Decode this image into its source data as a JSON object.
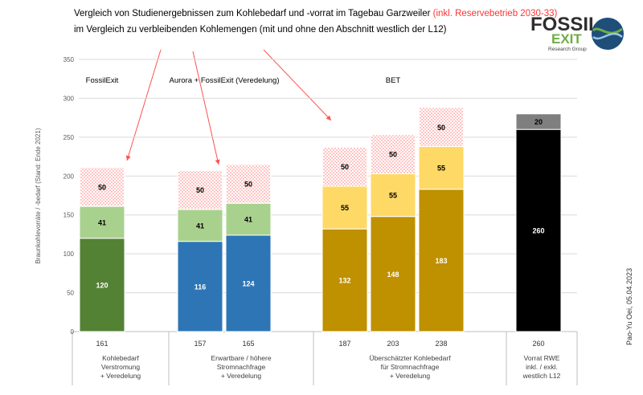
{
  "header": {
    "title_line1_main": "Vergleich von Studienergebnissen  zum Kohlebedarf  und -vorrat im Tagebau Garzweiler ",
    "title_line1_red": "(inkl. Reservebetrieb  2030-33)",
    "title_line2": "im Vergleich zu verbleibenden Kohlemengen (mit und ohne den Abschnitt westlich der L12)"
  },
  "logo": {
    "word1": "FOSSIL",
    "word2": "EXIT",
    "subtitle": "Research Group"
  },
  "credit": "Pao-Yu Oei, 05.04.2023",
  "colors": {
    "dark_green": "#548235",
    "light_green": "#a9d18e",
    "blue": "#2e75b6",
    "dark_gold": "#bf9000",
    "light_gold": "#ffd966",
    "black": "#000000",
    "grey": "#7f7f7f",
    "reserve_dots": "#ff6b6b",
    "arrow_red": "#ff5050"
  },
  "chart_data": {
    "type": "bar",
    "stacked": true,
    "ylabel": "Braunkohlevorräte / -bedarf (Stand: Ende 2021)",
    "ylim": [
      0,
      350
    ],
    "yticks": [
      0,
      50,
      100,
      150,
      200,
      250,
      300,
      350
    ],
    "grid": true,
    "study_labels": [
      {
        "label": "FossilExit",
        "bars": [
          0
        ]
      },
      {
        "label": "Aurora + FossilExit (Veredelung)",
        "bars": [
          1,
          2
        ]
      },
      {
        "label": "BET",
        "bars": [
          3,
          4,
          5
        ]
      }
    ],
    "bars": [
      {
        "total": "161",
        "segments": [
          {
            "value": 120,
            "label": "120",
            "color": "dark_green",
            "pattern": "solid",
            "text_color": "#ffffff"
          },
          {
            "value": 41,
            "label": "41",
            "color": "light_green",
            "pattern": "solid",
            "text_color": "#000000"
          },
          {
            "value": 50,
            "label": "50",
            "color": "reserve_dots",
            "pattern": "dots",
            "text_color": "#000000"
          }
        ]
      },
      {
        "total": "157",
        "segments": [
          {
            "value": 116,
            "label": "116",
            "color": "blue",
            "pattern": "solid",
            "text_color": "#ffffff"
          },
          {
            "value": 41,
            "label": "41",
            "color": "light_green",
            "pattern": "solid",
            "text_color": "#000000"
          },
          {
            "value": 50,
            "label": "50",
            "color": "reserve_dots",
            "pattern": "dots",
            "text_color": "#000000"
          }
        ]
      },
      {
        "total": "165",
        "segments": [
          {
            "value": 124,
            "label": "124",
            "color": "blue",
            "pattern": "solid",
            "text_color": "#ffffff"
          },
          {
            "value": 41,
            "label": "41",
            "color": "light_green",
            "pattern": "solid",
            "text_color": "#000000"
          },
          {
            "value": 50,
            "label": "50",
            "color": "reserve_dots",
            "pattern": "dots",
            "text_color": "#000000"
          }
        ]
      },
      {
        "total": "187",
        "segments": [
          {
            "value": 132,
            "label": "132",
            "color": "dark_gold",
            "pattern": "solid",
            "text_color": "#ffffff"
          },
          {
            "value": 55,
            "label": "55",
            "color": "light_gold",
            "pattern": "solid",
            "text_color": "#000000"
          },
          {
            "value": 50,
            "label": "50",
            "color": "reserve_dots",
            "pattern": "dots",
            "text_color": "#000000"
          }
        ]
      },
      {
        "total": "203",
        "segments": [
          {
            "value": 148,
            "label": "148",
            "color": "dark_gold",
            "pattern": "solid",
            "text_color": "#ffffff"
          },
          {
            "value": 55,
            "label": "55",
            "color": "light_gold",
            "pattern": "solid",
            "text_color": "#000000"
          },
          {
            "value": 50,
            "label": "50",
            "color": "reserve_dots",
            "pattern": "dots",
            "text_color": "#000000"
          }
        ]
      },
      {
        "total": "238",
        "segments": [
          {
            "value": 183,
            "label": "183",
            "color": "dark_gold",
            "pattern": "solid",
            "text_color": "#ffffff"
          },
          {
            "value": 55,
            "label": "55",
            "color": "light_gold",
            "pattern": "solid",
            "text_color": "#000000"
          },
          {
            "value": 50,
            "label": "50",
            "color": "reserve_dots",
            "pattern": "dots",
            "text_color": "#000000"
          }
        ]
      },
      {
        "total": "260",
        "segments": [
          {
            "value": 260,
            "label": "260",
            "color": "black",
            "pattern": "solid",
            "text_color": "#ffffff"
          },
          {
            "value": 20,
            "label": "20",
            "color": "grey",
            "pattern": "solid",
            "text_color": "#000000"
          }
        ]
      }
    ],
    "groups": [
      {
        "lines": [
          "Kohlebedarf",
          "Verstromung",
          "+ Veredelung"
        ],
        "bars": [
          0
        ]
      },
      {
        "lines": [
          "Erwartbare / höhere",
          "Stromnachfrage",
          "+ Veredelung"
        ],
        "bars": [
          1,
          2
        ]
      },
      {
        "lines": [
          "Überschätzter Kohlebedarf",
          "für Stromnachfrage",
          "+ Veredelung"
        ],
        "bars": [
          3,
          4,
          5
        ]
      },
      {
        "lines": [
          "Vorrat RWE",
          "inkl. / exkl.",
          "westlich L12"
        ],
        "bars": [
          6
        ]
      }
    ]
  }
}
